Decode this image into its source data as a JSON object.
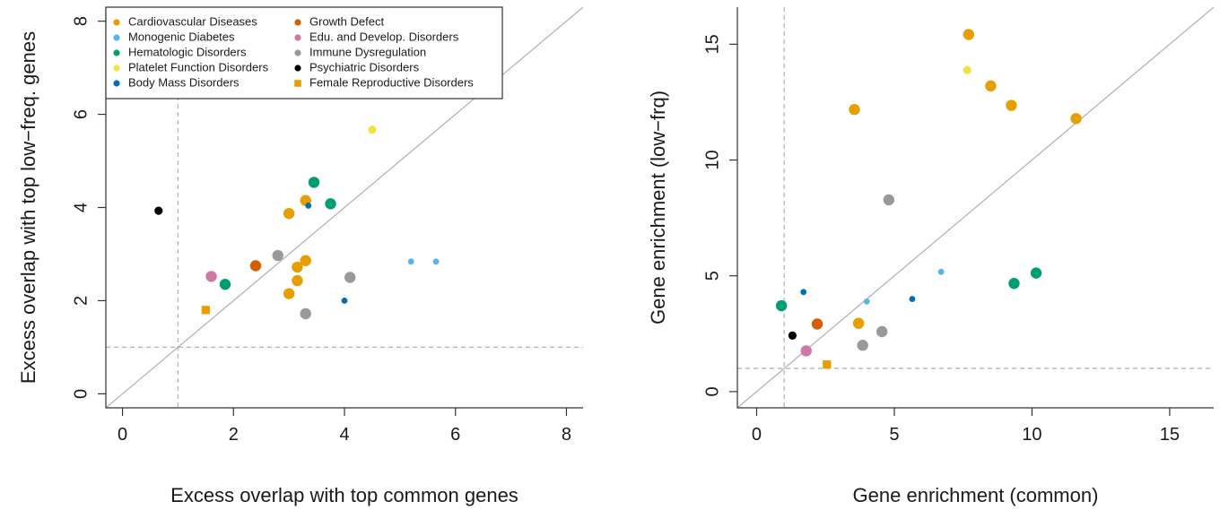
{
  "colors": {
    "Cardiovascular Diseases": "#E69F00",
    "Monogenic Diabetes": "#56B4E9",
    "Hematologic Disorders": "#009E73",
    "Platelet Function Disorders": "#F0E442",
    "Body Mass Disorders": "#0072B2",
    "Growth Defect": "#D55E00",
    "Edu. and Develop. Disorders": "#CC79A7",
    "Immune Dysregulation": "#999999",
    "Psychiatric Disorders": "#000000",
    "Female Reproductive Disorders": "#E69F00"
  },
  "chart_data": [
    {
      "type": "scatter",
      "xlabel": "Excess overlap with top common genes",
      "ylabel": "Excess overlap with top low−freq. genes",
      "xlim": [
        -0.3,
        8.3
      ],
      "ylim": [
        -0.3,
        8.3
      ],
      "xticks": [
        0,
        2,
        4,
        6,
        8
      ],
      "yticks": [
        0,
        2,
        4,
        6,
        8
      ],
      "reference_lines": {
        "diagonal": true,
        "vline_x": 1,
        "hline_y": 1
      },
      "legend": {
        "placement": "top-left",
        "columns": [
          [
            {
              "label": "Cardiovascular Diseases",
              "marker": "circle"
            },
            {
              "label": "Monogenic Diabetes",
              "marker": "circle"
            },
            {
              "label": "Hematologic Disorders",
              "marker": "circle"
            },
            {
              "label": "Platelet Function Disorders",
              "marker": "circle"
            },
            {
              "label": "Body Mass Disorders",
              "marker": "circle"
            }
          ],
          [
            {
              "label": "Growth Defect",
              "marker": "circle"
            },
            {
              "label": "Edu. and Develop. Disorders",
              "marker": "circle"
            },
            {
              "label": "Immune Dysregulation",
              "marker": "circle"
            },
            {
              "label": "Psychiatric Disorders",
              "marker": "circle"
            },
            {
              "label": "Female Reproductive Disorders",
              "marker": "square"
            }
          ]
        ]
      },
      "points": [
        {
          "category": "Cardiovascular Diseases",
          "x": 3.0,
          "y": 3.87,
          "size": "large"
        },
        {
          "category": "Cardiovascular Diseases",
          "x": 3.3,
          "y": 4.15,
          "size": "large"
        },
        {
          "category": "Cardiovascular Diseases",
          "x": 3.15,
          "y": 2.72,
          "size": "large"
        },
        {
          "category": "Cardiovascular Diseases",
          "x": 3.3,
          "y": 2.86,
          "size": "large"
        },
        {
          "category": "Cardiovascular Diseases",
          "x": 3.15,
          "y": 2.43,
          "size": "large"
        },
        {
          "category": "Cardiovascular Diseases",
          "x": 3.0,
          "y": 2.15,
          "size": "large"
        },
        {
          "category": "Monogenic Diabetes",
          "x": 5.2,
          "y": 2.84,
          "size": "small"
        },
        {
          "category": "Monogenic Diabetes",
          "x": 5.65,
          "y": 2.84,
          "size": "small"
        },
        {
          "category": "Hematologic Disorders",
          "x": 3.45,
          "y": 4.54,
          "size": "large"
        },
        {
          "category": "Hematologic Disorders",
          "x": 3.75,
          "y": 4.08,
          "size": "large"
        },
        {
          "category": "Hematologic Disorders",
          "x": 1.85,
          "y": 2.35,
          "size": "large"
        },
        {
          "category": "Platelet Function Disorders",
          "x": 4.5,
          "y": 5.67,
          "size": "medium"
        },
        {
          "category": "Body Mass Disorders",
          "x": 3.35,
          "y": 4.04,
          "size": "small"
        },
        {
          "category": "Body Mass Disorders",
          "x": 4.0,
          "y": 2.0,
          "size": "small"
        },
        {
          "category": "Growth Defect",
          "x": 2.4,
          "y": 2.75,
          "size": "large"
        },
        {
          "category": "Edu. and Develop. Disorders",
          "x": 1.6,
          "y": 2.52,
          "size": "large"
        },
        {
          "category": "Immune Dysregulation",
          "x": 2.8,
          "y": 2.97,
          "size": "large"
        },
        {
          "category": "Immune Dysregulation",
          "x": 4.1,
          "y": 2.5,
          "size": "large"
        },
        {
          "category": "Immune Dysregulation",
          "x": 3.3,
          "y": 1.72,
          "size": "large"
        },
        {
          "category": "Psychiatric Disorders",
          "x": 0.65,
          "y": 3.93,
          "size": "medium"
        },
        {
          "category": "Female Reproductive Disorders",
          "x": 1.5,
          "y": 1.8,
          "size": "square"
        }
      ]
    },
    {
      "type": "scatter",
      "xlabel": "Gene enrichment (common)",
      "ylabel": "Gene enrichment (low−frq)",
      "xlim": [
        -0.7,
        16.6
      ],
      "ylim": [
        -0.7,
        16.6
      ],
      "xticks": [
        0,
        5,
        10,
        15
      ],
      "yticks": [
        0,
        5,
        10,
        15
      ],
      "reference_lines": {
        "diagonal": true,
        "vline_x": 1,
        "hline_y": 1
      },
      "points": [
        {
          "category": "Cardiovascular Diseases",
          "x": 7.7,
          "y": 15.42,
          "size": "large"
        },
        {
          "category": "Cardiovascular Diseases",
          "x": 8.5,
          "y": 13.2,
          "size": "large"
        },
        {
          "category": "Cardiovascular Diseases",
          "x": 9.25,
          "y": 12.36,
          "size": "large"
        },
        {
          "category": "Cardiovascular Diseases",
          "x": 3.55,
          "y": 12.18,
          "size": "large"
        },
        {
          "category": "Cardiovascular Diseases",
          "x": 11.6,
          "y": 11.79,
          "size": "large"
        },
        {
          "category": "Cardiovascular Diseases",
          "x": 3.7,
          "y": 2.95,
          "size": "large"
        },
        {
          "category": "Monogenic Diabetes",
          "x": 6.7,
          "y": 5.17,
          "size": "small"
        },
        {
          "category": "Monogenic Diabetes",
          "x": 4.0,
          "y": 3.89,
          "size": "small"
        },
        {
          "category": "Hematologic Disorders",
          "x": 10.15,
          "y": 5.12,
          "size": "large"
        },
        {
          "category": "Hematologic Disorders",
          "x": 9.35,
          "y": 4.67,
          "size": "large"
        },
        {
          "category": "Hematologic Disorders",
          "x": 0.9,
          "y": 3.71,
          "size": "large"
        },
        {
          "category": "Platelet Function Disorders",
          "x": 7.65,
          "y": 13.88,
          "size": "medium"
        },
        {
          "category": "Body Mass Disorders",
          "x": 1.7,
          "y": 4.3,
          "size": "small"
        },
        {
          "category": "Body Mass Disorders",
          "x": 5.65,
          "y": 4.0,
          "size": "small"
        },
        {
          "category": "Growth Defect",
          "x": 2.2,
          "y": 2.92,
          "size": "large"
        },
        {
          "category": "Edu. and Develop. Disorders",
          "x": 1.8,
          "y": 1.76,
          "size": "large"
        },
        {
          "category": "Immune Dysregulation",
          "x": 4.8,
          "y": 8.28,
          "size": "large"
        },
        {
          "category": "Immune Dysregulation",
          "x": 4.55,
          "y": 2.59,
          "size": "large"
        },
        {
          "category": "Immune Dysregulation",
          "x": 3.85,
          "y": 2.0,
          "size": "large"
        },
        {
          "category": "Psychiatric Disorders",
          "x": 1.3,
          "y": 2.42,
          "size": "medium"
        },
        {
          "category": "Female Reproductive Disorders",
          "x": 2.55,
          "y": 1.17,
          "size": "square"
        }
      ]
    }
  ]
}
